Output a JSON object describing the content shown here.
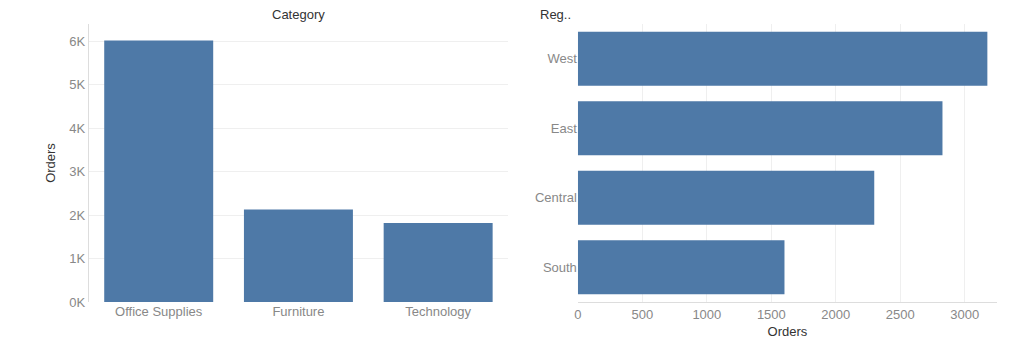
{
  "chart_data": [
    {
      "type": "bar",
      "x_label": "Category",
      "y_label": "Orders",
      "categories": [
        "Office Supplies",
        "Furniture",
        "Technology"
      ],
      "values": [
        6020,
        2130,
        1820
      ],
      "color": "#4e79a7",
      "ylim": [
        0,
        6400
      ],
      "yticks": [
        {
          "value": 0,
          "label": "0K"
        },
        {
          "value": 1000,
          "label": "1K"
        },
        {
          "value": 2000,
          "label": "2K"
        },
        {
          "value": 3000,
          "label": "3K"
        },
        {
          "value": 4000,
          "label": "4K"
        },
        {
          "value": 5000,
          "label": "5K"
        },
        {
          "value": 6000,
          "label": "6K"
        }
      ],
      "grid": true
    },
    {
      "type": "bar",
      "orientation": "horizontal",
      "x_label": "Orders",
      "y_label": "Reg..",
      "categories": [
        "West",
        "East",
        "Central",
        "South"
      ],
      "values": [
        3175,
        2827,
        2298,
        1602
      ],
      "color": "#4e79a7",
      "xlim": [
        0,
        3250
      ],
      "xticks": [
        0,
        500,
        1000,
        1500,
        2000,
        2500,
        3000
      ],
      "grid": true
    }
  ]
}
